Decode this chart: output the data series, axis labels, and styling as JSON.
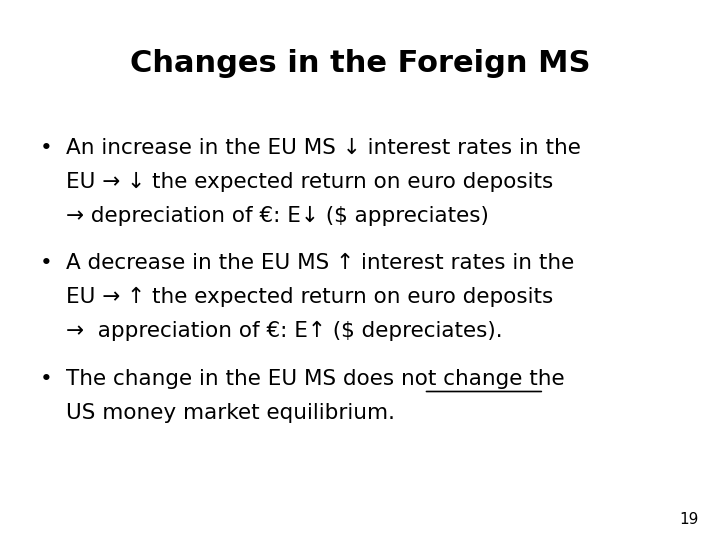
{
  "title": "Changes in the Foreign MS",
  "background_color": "#ffffff",
  "text_color": "#000000",
  "title_fontsize": 22,
  "body_fontsize": 15.5,
  "page_number": "19",
  "bullet1_lines": [
    "An increase in the EU MS ↓ interest rates in the",
    "EU → ↓ the expected return on euro deposits",
    "→ depreciation of €: E↓ ($ appreciates)"
  ],
  "bullet2_lines": [
    "A decrease in the EU MS ↑ interest rates in the",
    "EU → ↑ the expected return on euro deposits",
    "→  appreciation of €: E↑ ($ depreciates)."
  ],
  "bullet3_line1_prefix": "The change in the EU MS ",
  "bullet3_line1_underlined": "does not",
  "bullet3_line1_suffix": " change the",
  "bullet3_line2": "US money market equilibrium.",
  "font_family": "DejaVu Sans",
  "title_font_family": "DejaVu Sans"
}
